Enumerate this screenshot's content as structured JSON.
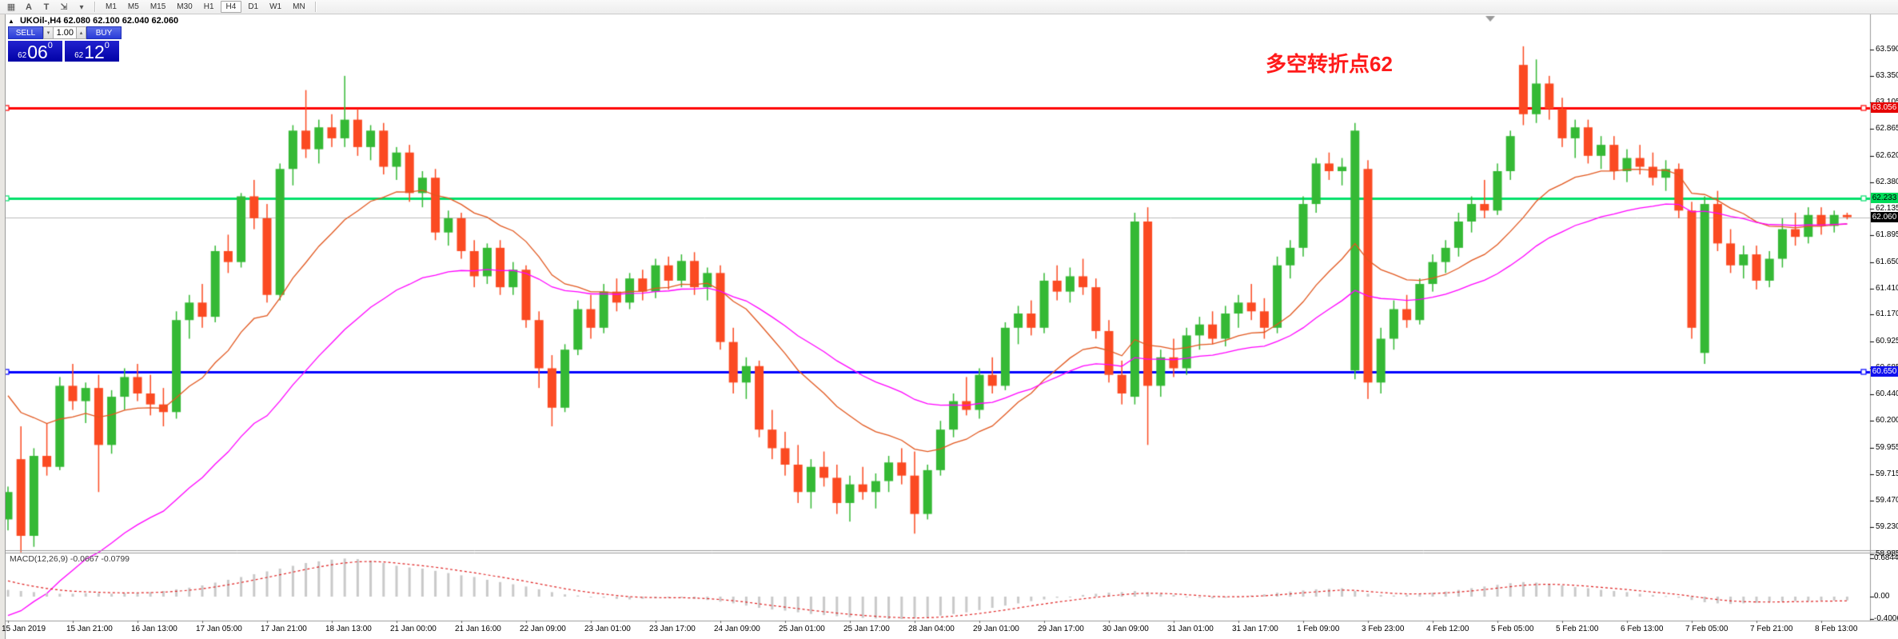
{
  "toolbar": {
    "tools": [
      {
        "name": "templates-icon",
        "glyph": "▦"
      },
      {
        "name": "text-label-icon",
        "glyph": "A"
      },
      {
        "name": "text-box-icon",
        "glyph": "T"
      },
      {
        "name": "cursor-mode-icon",
        "glyph": "⇲"
      },
      {
        "name": "dropdown-caret-icon",
        "glyph": "▾"
      }
    ],
    "timeframes": [
      "M1",
      "M5",
      "M15",
      "M30",
      "H1",
      "H4",
      "D1",
      "W1",
      "MN"
    ],
    "active_timeframe": "H4"
  },
  "header": {
    "collapse_arrow": "▲",
    "symbol": "UKOil-,H4",
    "ohlc": "62.080 62.100 62.040 62.060"
  },
  "one_click_panel": {
    "sell_label": "SELL",
    "buy_label": "BUY",
    "volume": "1.00",
    "spinner_down": "▾",
    "spinner_up": "▴",
    "sell_price": {
      "big_prefix": "62",
      "big_main": "06",
      "big_sup": "0"
    },
    "buy_price": {
      "big_prefix": "62",
      "big_main": "12",
      "big_sup": "0"
    }
  },
  "annotation": {
    "text": "多空转折点62",
    "color": "#ff1a1a"
  },
  "levels": [
    {
      "name": "resistance-line",
      "price": 63.056,
      "label": "63.056",
      "color": "#ff0000",
      "badge_bg": "#e60000",
      "badge_text": "#ffffff",
      "width": 3
    },
    {
      "name": "pivot-line",
      "price": 62.233,
      "label": "62.233",
      "color": "#00e06a",
      "badge_bg": "#00dc5a",
      "badge_text": "#000000",
      "width": 3
    },
    {
      "name": "current-price-line",
      "price": 62.06,
      "label": "62.060",
      "color": "#bbbbbb",
      "badge_bg": "#000000",
      "badge_text": "#ffffff",
      "width": 1
    },
    {
      "name": "support-line",
      "price": 60.65,
      "label": "60.650",
      "color": "#0000ff",
      "badge_bg": "#1212ee",
      "badge_text": "#ffffff",
      "width": 3
    }
  ],
  "price_axis": {
    "ticks": [
      63.59,
      63.35,
      63.105,
      62.865,
      62.62,
      62.38,
      62.135,
      61.895,
      61.65,
      61.41,
      61.17,
      60.925,
      60.685,
      60.44,
      60.2,
      59.955,
      59.715,
      59.47,
      59.23,
      58.985
    ]
  },
  "time_axis": {
    "labels": [
      "15 Jan 2019",
      "15 Jan 21:00",
      "16 Jan 13:00",
      "17 Jan 05:00",
      "17 Jan 21:00",
      "18 Jan 13:00",
      "21 Jan 00:00",
      "21 Jan 16:00",
      "22 Jan 09:00",
      "23 Jan 01:00",
      "23 Jan 17:00",
      "24 Jan 09:00",
      "25 Jan 01:00",
      "25 Jan 17:00",
      "28 Jan 04:00",
      "29 Jan 01:00",
      "29 Jan 17:00",
      "30 Jan 09:00",
      "31 Jan 01:00",
      "31 Jan 17:00",
      "1 Feb 09:00",
      "3 Feb 23:00",
      "4 Feb 12:00",
      "5 Feb 05:00",
      "5 Feb 21:00",
      "6 Feb 13:00",
      "7 Feb 05:00",
      "7 Feb 21:00",
      "8 Feb 13:00"
    ]
  },
  "chart_data": {
    "type": "candlestick",
    "symbol": "UKOil-",
    "timeframe": "H4",
    "up_color": "#35b935",
    "down_color": "#fb4a22",
    "ma_fast_color": "#e2571e",
    "ma_slow_color": "#ff00ff",
    "ylim": [
      58.985,
      63.59
    ],
    "bars": [
      [
        59.3,
        59.6,
        59.2,
        59.55
      ],
      [
        59.85,
        60.15,
        59.0,
        59.15
      ],
      [
        59.15,
        59.95,
        59.05,
        59.88
      ],
      [
        59.88,
        60.18,
        59.7,
        59.78
      ],
      [
        59.78,
        60.6,
        59.75,
        60.52
      ],
      [
        60.52,
        60.72,
        60.3,
        60.38
      ],
      [
        60.38,
        60.55,
        60.18,
        60.5
      ],
      [
        60.5,
        60.62,
        59.55,
        59.98
      ],
      [
        59.98,
        60.48,
        59.9,
        60.42
      ],
      [
        60.42,
        60.68,
        60.3,
        60.6
      ],
      [
        60.6,
        60.72,
        60.38,
        60.45
      ],
      [
        60.45,
        60.62,
        60.25,
        60.35
      ],
      [
        60.35,
        60.5,
        60.15,
        60.28
      ],
      [
        60.28,
        61.2,
        60.22,
        61.12
      ],
      [
        61.12,
        61.35,
        60.95,
        61.28
      ],
      [
        61.28,
        61.45,
        61.05,
        61.15
      ],
      [
        61.15,
        61.8,
        61.1,
        61.75
      ],
      [
        61.75,
        61.9,
        61.55,
        61.65
      ],
      [
        61.65,
        62.28,
        61.6,
        62.25
      ],
      [
        62.25,
        62.4,
        61.95,
        62.05
      ],
      [
        62.05,
        62.18,
        61.28,
        61.35
      ],
      [
        61.35,
        62.55,
        61.3,
        62.5
      ],
      [
        62.5,
        62.9,
        62.35,
        62.85
      ],
      [
        62.85,
        63.22,
        62.6,
        62.68
      ],
      [
        62.68,
        62.95,
        62.55,
        62.88
      ],
      [
        62.88,
        63.0,
        62.7,
        62.78
      ],
      [
        62.78,
        63.35,
        62.7,
        62.95
      ],
      [
        62.95,
        63.05,
        62.62,
        62.7
      ],
      [
        62.7,
        62.9,
        62.58,
        62.85
      ],
      [
        62.85,
        62.92,
        62.45,
        62.52
      ],
      [
        62.52,
        62.7,
        62.4,
        62.65
      ],
      [
        62.65,
        62.72,
        62.2,
        62.28
      ],
      [
        62.28,
        62.48,
        62.15,
        62.42
      ],
      [
        62.42,
        62.5,
        61.85,
        61.92
      ],
      [
        61.92,
        62.12,
        61.8,
        62.05
      ],
      [
        62.05,
        62.1,
        61.68,
        61.75
      ],
      [
        61.75,
        61.85,
        61.42,
        61.52
      ],
      [
        61.52,
        61.82,
        61.45,
        61.78
      ],
      [
        61.78,
        61.85,
        61.35,
        61.42
      ],
      [
        61.42,
        61.65,
        61.35,
        61.58
      ],
      [
        61.58,
        61.62,
        61.05,
        61.12
      ],
      [
        61.12,
        61.2,
        60.5,
        60.68
      ],
      [
        60.68,
        60.8,
        60.15,
        60.32
      ],
      [
        60.32,
        60.9,
        60.28,
        60.85
      ],
      [
        60.85,
        61.3,
        60.8,
        61.22
      ],
      [
        61.22,
        61.35,
        60.95,
        61.05
      ],
      [
        61.05,
        61.45,
        61.0,
        61.38
      ],
      [
        61.38,
        61.5,
        61.2,
        61.28
      ],
      [
        61.28,
        61.55,
        61.22,
        61.5
      ],
      [
        61.5,
        61.58,
        61.3,
        61.38
      ],
      [
        61.38,
        61.68,
        61.32,
        61.62
      ],
      [
        61.62,
        61.7,
        61.4,
        61.48
      ],
      [
        61.48,
        61.72,
        61.42,
        61.66
      ],
      [
        61.66,
        61.74,
        61.35,
        61.42
      ],
      [
        61.42,
        61.6,
        61.3,
        61.55
      ],
      [
        61.55,
        61.62,
        60.85,
        60.92
      ],
      [
        60.92,
        61.05,
        60.45,
        60.55
      ],
      [
        60.55,
        60.78,
        60.4,
        60.7
      ],
      [
        60.7,
        60.75,
        60.05,
        60.12
      ],
      [
        60.12,
        60.3,
        59.85,
        59.95
      ],
      [
        59.95,
        60.1,
        59.7,
        59.8
      ],
      [
        59.8,
        59.98,
        59.45,
        59.55
      ],
      [
        59.55,
        59.85,
        59.4,
        59.78
      ],
      [
        59.78,
        59.92,
        59.6,
        59.68
      ],
      [
        59.68,
        59.8,
        59.35,
        59.45
      ],
      [
        59.45,
        59.7,
        59.28,
        59.62
      ],
      [
        59.62,
        59.78,
        59.48,
        59.55
      ],
      [
        59.55,
        59.72,
        59.4,
        59.65
      ],
      [
        59.65,
        59.88,
        59.55,
        59.82
      ],
      [
        59.82,
        59.95,
        59.62,
        59.7
      ],
      [
        59.7,
        59.92,
        59.17,
        59.35
      ],
      [
        59.35,
        59.8,
        59.3,
        59.75
      ],
      [
        59.75,
        60.2,
        59.7,
        60.12
      ],
      [
        60.12,
        60.45,
        60.05,
        60.38
      ],
      [
        60.38,
        60.6,
        60.25,
        60.3
      ],
      [
        60.3,
        60.68,
        60.22,
        60.62
      ],
      [
        60.62,
        60.78,
        60.45,
        60.52
      ],
      [
        60.52,
        61.1,
        60.48,
        61.05
      ],
      [
        61.05,
        61.25,
        60.9,
        61.18
      ],
      [
        61.18,
        61.3,
        60.98,
        61.05
      ],
      [
        61.05,
        61.55,
        61.0,
        61.48
      ],
      [
        61.48,
        61.62,
        61.3,
        61.38
      ],
      [
        61.38,
        61.6,
        61.28,
        61.52
      ],
      [
        61.52,
        61.68,
        61.35,
        61.42
      ],
      [
        61.42,
        61.5,
        60.95,
        61.02
      ],
      [
        61.02,
        61.12,
        60.55,
        60.62
      ],
      [
        60.62,
        60.75,
        60.35,
        60.45
      ],
      [
        60.42,
        62.1,
        60.35,
        62.02
      ],
      [
        62.02,
        62.15,
        59.98,
        60.52
      ],
      [
        60.52,
        60.85,
        60.42,
        60.78
      ],
      [
        60.78,
        60.95,
        60.6,
        60.68
      ],
      [
        60.68,
        61.05,
        60.62,
        60.98
      ],
      [
        60.98,
        61.15,
        60.85,
        61.08
      ],
      [
        61.08,
        61.2,
        60.9,
        60.95
      ],
      [
        60.95,
        61.25,
        60.88,
        61.18
      ],
      [
        61.18,
        61.35,
        61.05,
        61.28
      ],
      [
        61.28,
        61.45,
        61.12,
        61.2
      ],
      [
        61.2,
        61.32,
        60.95,
        61.05
      ],
      [
        61.05,
        61.7,
        61.0,
        61.62
      ],
      [
        61.62,
        61.85,
        61.5,
        61.78
      ],
      [
        61.78,
        62.25,
        61.7,
        62.18
      ],
      [
        62.18,
        62.6,
        62.1,
        62.55
      ],
      [
        62.55,
        62.65,
        62.4,
        62.48
      ],
      [
        62.48,
        62.6,
        62.35,
        62.52
      ],
      [
        60.66,
        62.92,
        60.58,
        62.85
      ],
      [
        62.5,
        62.58,
        60.4,
        60.55
      ],
      [
        60.55,
        61.05,
        60.45,
        60.95
      ],
      [
        60.95,
        61.3,
        60.85,
        61.22
      ],
      [
        61.22,
        61.35,
        61.05,
        61.12
      ],
      [
        61.12,
        61.5,
        61.08,
        61.45
      ],
      [
        61.45,
        61.72,
        61.38,
        61.65
      ],
      [
        61.65,
        61.85,
        61.55,
        61.78
      ],
      [
        61.78,
        62.1,
        61.7,
        62.02
      ],
      [
        62.02,
        62.25,
        61.92,
        62.18
      ],
      [
        62.18,
        62.4,
        62.05,
        62.12
      ],
      [
        62.12,
        62.55,
        62.08,
        62.48
      ],
      [
        62.48,
        62.85,
        62.4,
        62.8
      ],
      [
        63.45,
        63.62,
        62.9,
        63.0
      ],
      [
        63.0,
        63.5,
        62.92,
        63.28
      ],
      [
        63.28,
        63.35,
        62.95,
        63.05
      ],
      [
        63.05,
        63.15,
        62.7,
        62.78
      ],
      [
        62.78,
        62.95,
        62.6,
        62.88
      ],
      [
        62.88,
        62.95,
        62.55,
        62.62
      ],
      [
        62.62,
        62.8,
        62.5,
        62.72
      ],
      [
        62.72,
        62.8,
        62.4,
        62.48
      ],
      [
        62.48,
        62.68,
        62.38,
        62.6
      ],
      [
        62.6,
        62.72,
        62.45,
        62.52
      ],
      [
        62.52,
        62.65,
        62.35,
        62.42
      ],
      [
        62.42,
        62.58,
        62.3,
        62.5
      ],
      [
        62.5,
        62.55,
        62.05,
        62.12
      ],
      [
        62.12,
        62.2,
        60.95,
        61.05
      ],
      [
        60.82,
        62.25,
        60.72,
        62.18
      ],
      [
        62.18,
        62.3,
        61.75,
        61.82
      ],
      [
        61.82,
        61.95,
        61.55,
        61.62
      ],
      [
        61.62,
        61.8,
        61.5,
        61.72
      ],
      [
        61.72,
        61.8,
        61.4,
        61.48
      ],
      [
        61.48,
        61.75,
        61.42,
        61.68
      ],
      [
        61.68,
        62.05,
        61.6,
        61.95
      ],
      [
        61.95,
        62.1,
        61.8,
        61.88
      ],
      [
        61.88,
        62.15,
        61.82,
        62.08
      ],
      [
        62.08,
        62.15,
        61.9,
        61.98
      ],
      [
        61.98,
        62.12,
        61.92,
        62.08
      ],
      [
        62.08,
        62.1,
        62.04,
        62.06
      ]
    ]
  },
  "macd": {
    "name": "MACD(12,26,9)",
    "values": "-0.0667 -0.0799",
    "main_value": -0.0667,
    "signal_value": -0.0799,
    "histogram_color": "#c9c9c9",
    "signal_color": "#e02020",
    "axis_ticks": [
      {
        "label": "0.6844",
        "value": 0.6844
      },
      {
        "label": "0.00",
        "value": 0
      },
      {
        "label": "-0.4006",
        "value": -0.4006
      }
    ],
    "series": [
      0.12,
      0.1,
      0.08,
      0.06,
      0.05,
      0.05,
      0.06,
      0.06,
      0.05,
      0.06,
      0.07,
      0.08,
      0.1,
      0.13,
      0.16,
      0.2,
      0.25,
      0.3,
      0.35,
      0.4,
      0.45,
      0.5,
      0.55,
      0.6,
      0.63,
      0.66,
      0.68,
      0.67,
      0.64,
      0.6,
      0.55,
      0.52,
      0.5,
      0.46,
      0.42,
      0.38,
      0.35,
      0.3,
      0.26,
      0.22,
      0.18,
      0.13,
      0.08,
      0.04,
      0.02,
      0.0,
      -0.02,
      -0.04,
      -0.05,
      -0.04,
      -0.03,
      -0.02,
      -0.02,
      -0.04,
      -0.06,
      -0.09,
      -0.12,
      -0.16,
      -0.2,
      -0.23,
      -0.25,
      -0.28,
      -0.31,
      -0.33,
      -0.35,
      -0.37,
      -0.38,
      -0.39,
      -0.4,
      -0.4,
      -0.39,
      -0.37,
      -0.34,
      -0.31,
      -0.28,
      -0.24,
      -0.2,
      -0.16,
      -0.12,
      -0.08,
      -0.05,
      -0.02,
      0.0,
      0.03,
      0.05,
      0.07,
      0.08,
      0.1,
      0.08,
      0.05,
      0.03,
      0.0,
      -0.02,
      -0.03,
      -0.02,
      0.0,
      0.02,
      0.04,
      0.07,
      0.09,
      0.11,
      0.13,
      0.14,
      0.15,
      0.1,
      0.05,
      0.03,
      0.02,
      0.03,
      0.05,
      0.07,
      0.09,
      0.12,
      0.15,
      0.18,
      0.21,
      0.24,
      0.26,
      0.25,
      0.23,
      0.2,
      0.17,
      0.15,
      0.12,
      0.1,
      0.08,
      0.05,
      0.03,
      0.01,
      -0.02,
      -0.06,
      -0.1,
      -0.12,
      -0.13,
      -0.12,
      -0.11,
      -0.1,
      -0.09,
      -0.08,
      -0.08,
      -0.07,
      -0.07,
      -0.067
    ]
  }
}
